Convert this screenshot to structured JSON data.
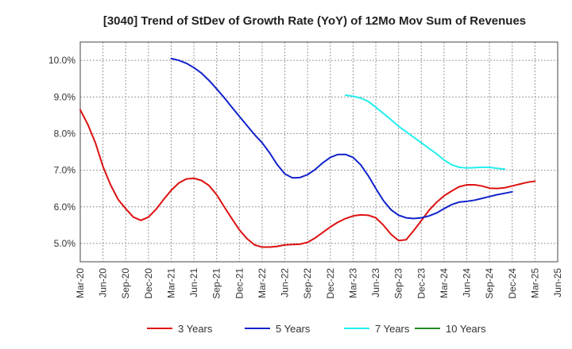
{
  "chart_data": {
    "type": "line",
    "title": "[3040]  Trend of StDev of Growth Rate (YoY) of 12Mo Mov Sum of Revenues",
    "xlabel": "",
    "ylabel": "",
    "ylim": [
      4.5,
      10.5
    ],
    "y_ticks": [
      "5.0%",
      "6.0%",
      "7.0%",
      "8.0%",
      "9.0%",
      "10.0%"
    ],
    "y_tick_values": [
      5,
      6,
      7,
      8,
      9,
      10
    ],
    "x_ticks": [
      "Mar-20",
      "Jun-20",
      "Sep-20",
      "Dec-20",
      "Mar-21",
      "Jun-21",
      "Sep-21",
      "Dec-21",
      "Mar-22",
      "Jun-22",
      "Sep-22",
      "Dec-22",
      "Mar-23",
      "Jun-23",
      "Sep-23",
      "Dec-23",
      "Mar-24",
      "Jun-24",
      "Sep-24",
      "Dec-24",
      "Mar-25",
      "Jun-25"
    ],
    "x_range_months": [
      0,
      63
    ],
    "grid": true,
    "legend_position": "bottom",
    "series": [
      {
        "name": "3 Years",
        "color": "#dd1111",
        "points": [
          [
            0,
            8.65
          ],
          [
            1,
            8.25
          ],
          [
            2,
            7.75
          ],
          [
            3,
            7.1
          ],
          [
            4,
            6.6
          ],
          [
            5,
            6.2
          ],
          [
            6,
            5.95
          ],
          [
            7,
            5.72
          ],
          [
            8,
            5.63
          ],
          [
            9,
            5.72
          ],
          [
            10,
            5.93
          ],
          [
            11,
            6.2
          ],
          [
            12,
            6.45
          ],
          [
            13,
            6.65
          ],
          [
            14,
            6.76
          ],
          [
            15,
            6.78
          ],
          [
            16,
            6.72
          ],
          [
            17,
            6.58
          ],
          [
            18,
            6.33
          ],
          [
            19,
            6.0
          ],
          [
            20,
            5.68
          ],
          [
            21,
            5.37
          ],
          [
            22,
            5.13
          ],
          [
            23,
            4.96
          ],
          [
            24,
            4.9
          ],
          [
            25,
            4.9
          ],
          [
            26,
            4.92
          ],
          [
            27,
            4.96
          ],
          [
            28,
            4.97
          ],
          [
            29,
            4.98
          ],
          [
            30,
            5.03
          ],
          [
            31,
            5.15
          ],
          [
            32,
            5.3
          ],
          [
            33,
            5.45
          ],
          [
            34,
            5.58
          ],
          [
            35,
            5.68
          ],
          [
            36,
            5.75
          ],
          [
            37,
            5.78
          ],
          [
            38,
            5.77
          ],
          [
            39,
            5.7
          ],
          [
            40,
            5.5
          ],
          [
            41,
            5.25
          ],
          [
            42,
            5.08
          ],
          [
            43,
            5.1
          ],
          [
            44,
            5.35
          ],
          [
            45,
            5.62
          ],
          [
            46,
            5.9
          ],
          [
            47,
            6.12
          ],
          [
            48,
            6.3
          ],
          [
            49,
            6.43
          ],
          [
            50,
            6.55
          ],
          [
            51,
            6.6
          ],
          [
            52,
            6.6
          ],
          [
            53,
            6.57
          ],
          [
            54,
            6.51
          ],
          [
            55,
            6.5
          ],
          [
            56,
            6.52
          ],
          [
            57,
            6.57
          ],
          [
            58,
            6.62
          ],
          [
            59,
            6.67
          ],
          [
            60,
            6.7
          ]
        ]
      },
      {
        "name": "5 Years",
        "color": "#1122cc",
        "points": [
          [
            12,
            10.05
          ],
          [
            13,
            10.0
          ],
          [
            14,
            9.92
          ],
          [
            15,
            9.8
          ],
          [
            16,
            9.65
          ],
          [
            17,
            9.45
          ],
          [
            18,
            9.22
          ],
          [
            19,
            8.98
          ],
          [
            20,
            8.72
          ],
          [
            21,
            8.47
          ],
          [
            22,
            8.22
          ],
          [
            23,
            7.97
          ],
          [
            24,
            7.75
          ],
          [
            25,
            7.47
          ],
          [
            26,
            7.15
          ],
          [
            27,
            6.9
          ],
          [
            28,
            6.79
          ],
          [
            29,
            6.8
          ],
          [
            30,
            6.88
          ],
          [
            31,
            7.02
          ],
          [
            32,
            7.2
          ],
          [
            33,
            7.35
          ],
          [
            34,
            7.43
          ],
          [
            35,
            7.43
          ],
          [
            36,
            7.35
          ],
          [
            37,
            7.15
          ],
          [
            38,
            6.85
          ],
          [
            39,
            6.5
          ],
          [
            40,
            6.17
          ],
          [
            41,
            5.92
          ],
          [
            42,
            5.77
          ],
          [
            43,
            5.7
          ],
          [
            44,
            5.68
          ],
          [
            45,
            5.7
          ],
          [
            46,
            5.75
          ],
          [
            47,
            5.83
          ],
          [
            48,
            5.95
          ],
          [
            49,
            6.06
          ],
          [
            50,
            6.13
          ],
          [
            51,
            6.15
          ],
          [
            52,
            6.18
          ],
          [
            53,
            6.23
          ],
          [
            54,
            6.28
          ],
          [
            55,
            6.33
          ],
          [
            56,
            6.37
          ],
          [
            57,
            6.41
          ]
        ]
      },
      {
        "name": "7 Years",
        "color": "#22eeee",
        "points": [
          [
            35,
            9.05
          ],
          [
            36,
            9.02
          ],
          [
            37,
            8.97
          ],
          [
            38,
            8.88
          ],
          [
            39,
            8.72
          ],
          [
            40,
            8.55
          ],
          [
            41,
            8.38
          ],
          [
            42,
            8.2
          ],
          [
            43,
            8.05
          ],
          [
            44,
            7.9
          ],
          [
            45,
            7.75
          ],
          [
            46,
            7.6
          ],
          [
            47,
            7.45
          ],
          [
            48,
            7.28
          ],
          [
            49,
            7.15
          ],
          [
            50,
            7.08
          ],
          [
            51,
            7.06
          ],
          [
            52,
            7.07
          ],
          [
            53,
            7.08
          ],
          [
            54,
            7.08
          ],
          [
            55,
            7.05
          ],
          [
            56,
            7.03
          ]
        ]
      },
      {
        "name": "10 Years",
        "color": "#228822",
        "points": []
      }
    ]
  }
}
